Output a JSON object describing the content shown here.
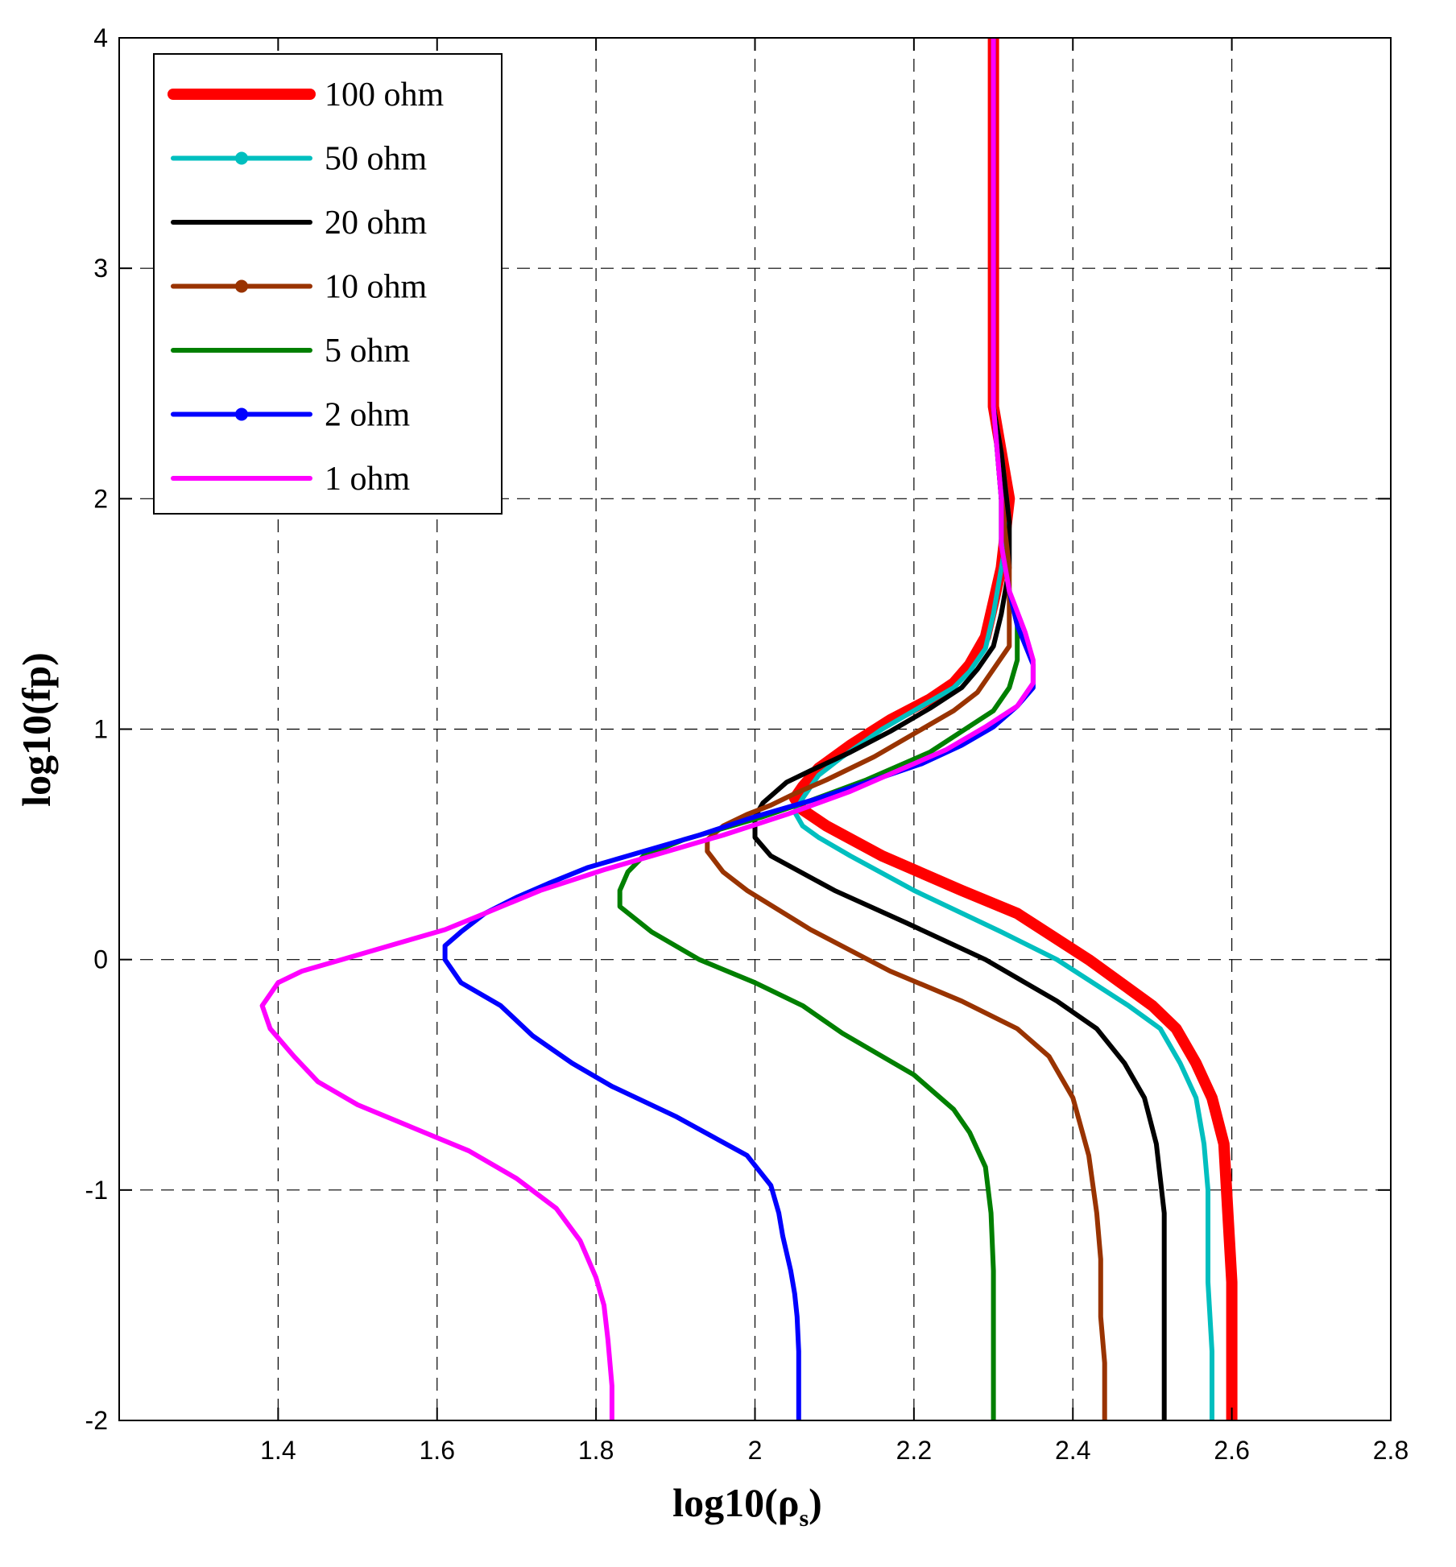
{
  "chart_data": {
    "type": "line",
    "title": "",
    "xlabel": "log10(ρ",
    "xlabel_sub": "s",
    "xlabel_close": ")",
    "ylabel": "log10(fp)",
    "xlim": [
      1.2,
      2.8
    ],
    "ylim": [
      -2,
      4
    ],
    "grid": true,
    "legend_position": "top-left",
    "xticks": [
      1.4,
      1.6,
      1.8,
      2.0,
      2.2,
      2.4,
      2.6,
      2.8
    ],
    "xtick_labels": [
      "1.4",
      "1.6",
      "1.8",
      "2",
      "2.2",
      "2.4",
      "2.6",
      "2.8"
    ],
    "yticks": [
      -2,
      -1,
      0,
      1,
      2,
      3,
      4
    ],
    "ytick_labels": [
      "-2",
      "-1",
      "0",
      "1",
      "2",
      "3",
      "4"
    ],
    "series": [
      {
        "name": "100 ohm",
        "color": "#ff0000",
        "marker": "none",
        "emphasis": "thick",
        "points": [
          [
            2.6,
            -2
          ],
          [
            2.6,
            -1.4
          ],
          [
            2.595,
            -1.1
          ],
          [
            2.59,
            -0.8
          ],
          [
            2.575,
            -0.6
          ],
          [
            2.555,
            -0.45
          ],
          [
            2.53,
            -0.3
          ],
          [
            2.5,
            -0.2
          ],
          [
            2.46,
            -0.1
          ],
          [
            2.42,
            0.0
          ],
          [
            2.33,
            0.2
          ],
          [
            2.26,
            0.3
          ],
          [
            2.16,
            0.45
          ],
          [
            2.09,
            0.58
          ],
          [
            2.06,
            0.65
          ],
          [
            2.05,
            0.7
          ],
          [
            2.06,
            0.75
          ],
          [
            2.08,
            0.83
          ],
          [
            2.12,
            0.93
          ],
          [
            2.17,
            1.04
          ],
          [
            2.22,
            1.13
          ],
          [
            2.25,
            1.2
          ],
          [
            2.27,
            1.28
          ],
          [
            2.29,
            1.4
          ],
          [
            2.3,
            1.55
          ],
          [
            2.31,
            1.7
          ],
          [
            2.32,
            2.0
          ],
          [
            2.31,
            2.2
          ],
          [
            2.3,
            2.4
          ],
          [
            2.3,
            3.0
          ],
          [
            2.3,
            4.0
          ]
        ]
      },
      {
        "name": "50 ohm",
        "color": "#00bfbf",
        "marker": "circle",
        "emphasis": "normal",
        "points": [
          [
            2.575,
            -2
          ],
          [
            2.575,
            -1.7
          ],
          [
            2.57,
            -1.4
          ],
          [
            2.57,
            -1.0
          ],
          [
            2.565,
            -0.8
          ],
          [
            2.555,
            -0.6
          ],
          [
            2.535,
            -0.45
          ],
          [
            2.51,
            -0.3
          ],
          [
            2.47,
            -0.2
          ],
          [
            2.38,
            0.0
          ],
          [
            2.31,
            0.12
          ],
          [
            2.2,
            0.3
          ],
          [
            2.12,
            0.45
          ],
          [
            2.08,
            0.53
          ],
          [
            2.06,
            0.58
          ],
          [
            2.05,
            0.64
          ],
          [
            2.06,
            0.7
          ],
          [
            2.08,
            0.8
          ],
          [
            2.11,
            0.88
          ],
          [
            2.16,
            1.0
          ],
          [
            2.21,
            1.1
          ],
          [
            2.25,
            1.18
          ],
          [
            2.27,
            1.25
          ],
          [
            2.29,
            1.35
          ],
          [
            2.3,
            1.5
          ],
          [
            2.31,
            1.7
          ],
          [
            2.32,
            1.9
          ],
          [
            2.31,
            2.2
          ],
          [
            2.3,
            2.4
          ],
          [
            2.3,
            3.0
          ],
          [
            2.3,
            4.0
          ]
        ]
      },
      {
        "name": "20 ohm",
        "color": "#000000",
        "marker": "none",
        "emphasis": "normal",
        "points": [
          [
            2.515,
            -2
          ],
          [
            2.515,
            -1.7
          ],
          [
            2.515,
            -1.4
          ],
          [
            2.515,
            -1.1
          ],
          [
            2.505,
            -0.8
          ],
          [
            2.49,
            -0.6
          ],
          [
            2.465,
            -0.45
          ],
          [
            2.43,
            -0.3
          ],
          [
            2.38,
            -0.18
          ],
          [
            2.29,
            0.0
          ],
          [
            2.19,
            0.16
          ],
          [
            2.1,
            0.3
          ],
          [
            2.02,
            0.45
          ],
          [
            2.0,
            0.53
          ],
          [
            2.0,
            0.62
          ],
          [
            2.01,
            0.68
          ],
          [
            2.04,
            0.77
          ],
          [
            2.07,
            0.82
          ],
          [
            2.12,
            0.9
          ],
          [
            2.17,
            0.99
          ],
          [
            2.22,
            1.09
          ],
          [
            2.26,
            1.18
          ],
          [
            2.28,
            1.26
          ],
          [
            2.3,
            1.36
          ],
          [
            2.31,
            1.5
          ],
          [
            2.32,
            1.7
          ],
          [
            2.32,
            1.9
          ],
          [
            2.31,
            2.2
          ],
          [
            2.3,
            2.4
          ],
          [
            2.3,
            3.0
          ],
          [
            2.3,
            4.0
          ]
        ]
      },
      {
        "name": "10 ohm",
        "color": "#993300",
        "marker": "circle",
        "emphasis": "normal",
        "points": [
          [
            2.44,
            -2
          ],
          [
            2.44,
            -1.75
          ],
          [
            2.435,
            -1.55
          ],
          [
            2.435,
            -1.3
          ],
          [
            2.43,
            -1.1
          ],
          [
            2.42,
            -0.85
          ],
          [
            2.4,
            -0.6
          ],
          [
            2.37,
            -0.42
          ],
          [
            2.33,
            -0.3
          ],
          [
            2.26,
            -0.18
          ],
          [
            2.17,
            -0.05
          ],
          [
            2.07,
            0.13
          ],
          [
            1.99,
            0.3
          ],
          [
            1.96,
            0.38
          ],
          [
            1.94,
            0.47
          ],
          [
            1.94,
            0.52
          ],
          [
            1.96,
            0.58
          ],
          [
            1.99,
            0.63
          ],
          [
            2.02,
            0.67
          ],
          [
            2.05,
            0.72
          ],
          [
            2.09,
            0.78
          ],
          [
            2.15,
            0.88
          ],
          [
            2.2,
            0.98
          ],
          [
            2.25,
            1.08
          ],
          [
            2.28,
            1.16
          ],
          [
            2.3,
            1.26
          ],
          [
            2.32,
            1.36
          ],
          [
            2.32,
            1.5
          ],
          [
            2.32,
            1.7
          ],
          [
            2.31,
            2.0
          ],
          [
            2.3,
            2.4
          ],
          [
            2.3,
            3.0
          ],
          [
            2.3,
            4.0
          ]
        ]
      },
      {
        "name": "5 ohm",
        "color": "#007f00",
        "marker": "none",
        "emphasis": "normal",
        "points": [
          [
            2.3,
            -2
          ],
          [
            2.3,
            -1.75
          ],
          [
            2.3,
            -1.5
          ],
          [
            2.3,
            -1.35
          ],
          [
            2.297,
            -1.1
          ],
          [
            2.29,
            -0.9
          ],
          [
            2.27,
            -0.75
          ],
          [
            2.25,
            -0.65
          ],
          [
            2.2,
            -0.5
          ],
          [
            2.11,
            -0.32
          ],
          [
            2.06,
            -0.2
          ],
          [
            2.0,
            -0.1
          ],
          [
            1.93,
            0.0
          ],
          [
            1.87,
            0.12
          ],
          [
            1.83,
            0.23
          ],
          [
            1.83,
            0.3
          ],
          [
            1.84,
            0.38
          ],
          [
            1.86,
            0.45
          ],
          [
            1.91,
            0.52
          ],
          [
            1.96,
            0.57
          ],
          [
            2.01,
            0.62
          ],
          [
            2.07,
            0.69
          ],
          [
            2.14,
            0.78
          ],
          [
            2.22,
            0.9
          ],
          [
            2.26,
            0.99
          ],
          [
            2.3,
            1.08
          ],
          [
            2.32,
            1.18
          ],
          [
            2.33,
            1.3
          ],
          [
            2.33,
            1.45
          ],
          [
            2.32,
            1.6
          ],
          [
            2.31,
            1.8
          ],
          [
            2.31,
            2.0
          ],
          [
            2.3,
            2.4
          ],
          [
            2.3,
            3.0
          ],
          [
            2.3,
            4.0
          ]
        ]
      },
      {
        "name": "2 ohm",
        "color": "#0000ff",
        "marker": "circle",
        "emphasis": "normal",
        "points": [
          [
            2.055,
            -2
          ],
          [
            2.055,
            -1.7
          ],
          [
            2.053,
            -1.55
          ],
          [
            2.05,
            -1.45
          ],
          [
            2.045,
            -1.35
          ],
          [
            2.035,
            -1.2
          ],
          [
            2.03,
            -1.1
          ],
          [
            2.02,
            -0.98
          ],
          [
            1.99,
            -0.85
          ],
          [
            1.9,
            -0.68
          ],
          [
            1.82,
            -0.55
          ],
          [
            1.77,
            -0.45
          ],
          [
            1.72,
            -0.33
          ],
          [
            1.68,
            -0.2
          ],
          [
            1.63,
            -0.1
          ],
          [
            1.61,
            0.0
          ],
          [
            1.61,
            0.06
          ],
          [
            1.63,
            0.12
          ],
          [
            1.66,
            0.2
          ],
          [
            1.7,
            0.27
          ],
          [
            1.74,
            0.33
          ],
          [
            1.79,
            0.4
          ],
          [
            1.85,
            0.46
          ],
          [
            1.93,
            0.54
          ],
          [
            2.0,
            0.62
          ],
          [
            2.08,
            0.7
          ],
          [
            2.15,
            0.78
          ],
          [
            2.21,
            0.85
          ],
          [
            2.26,
            0.93
          ],
          [
            2.3,
            1.01
          ],
          [
            2.33,
            1.1
          ],
          [
            2.35,
            1.18
          ],
          [
            2.35,
            1.28
          ],
          [
            2.33,
            1.45
          ],
          [
            2.32,
            1.6
          ],
          [
            2.31,
            1.8
          ],
          [
            2.31,
            2.0
          ],
          [
            2.3,
            2.4
          ],
          [
            2.3,
            3.0
          ],
          [
            2.3,
            4.0
          ]
        ]
      },
      {
        "name": "1 ohm",
        "color": "#ff00ff",
        "marker": "none",
        "emphasis": "normal",
        "points": [
          [
            1.82,
            -2
          ],
          [
            1.82,
            -1.85
          ],
          [
            1.815,
            -1.65
          ],
          [
            1.81,
            -1.5
          ],
          [
            1.8,
            -1.38
          ],
          [
            1.78,
            -1.22
          ],
          [
            1.75,
            -1.08
          ],
          [
            1.7,
            -0.95
          ],
          [
            1.64,
            -0.83
          ],
          [
            1.57,
            -0.73
          ],
          [
            1.5,
            -0.63
          ],
          [
            1.45,
            -0.53
          ],
          [
            1.42,
            -0.42
          ],
          [
            1.39,
            -0.3
          ],
          [
            1.38,
            -0.2
          ],
          [
            1.4,
            -0.1
          ],
          [
            1.43,
            -0.05
          ],
          [
            1.48,
            0.0
          ],
          [
            1.55,
            0.07
          ],
          [
            1.61,
            0.13
          ],
          [
            1.66,
            0.2
          ],
          [
            1.73,
            0.3
          ],
          [
            1.81,
            0.39
          ],
          [
            1.89,
            0.47
          ],
          [
            1.96,
            0.54
          ],
          [
            2.04,
            0.63
          ],
          [
            2.12,
            0.73
          ],
          [
            2.18,
            0.82
          ],
          [
            2.24,
            0.91
          ],
          [
            2.29,
            1.01
          ],
          [
            2.33,
            1.1
          ],
          [
            2.35,
            1.2
          ],
          [
            2.35,
            1.3
          ],
          [
            2.34,
            1.42
          ],
          [
            2.32,
            1.6
          ],
          [
            2.31,
            1.8
          ],
          [
            2.31,
            2.0
          ],
          [
            2.3,
            2.4
          ],
          [
            2.3,
            3.0
          ],
          [
            2.3,
            4.0
          ]
        ]
      }
    ]
  }
}
